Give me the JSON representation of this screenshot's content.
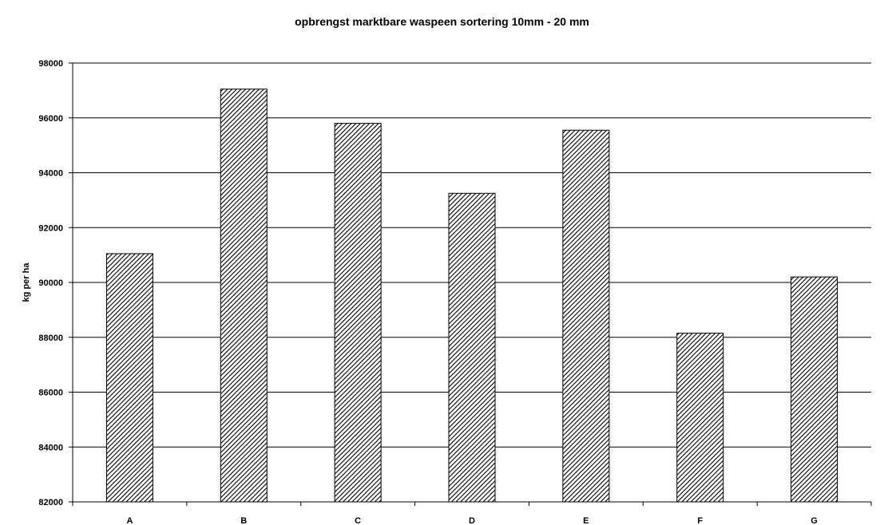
{
  "chart_data": {
    "type": "bar",
    "title": "opbrengst marktbare waspeen sortering 10mm - 20 mm",
    "xlabel": "",
    "ylabel": "kg per ha",
    "categories": [
      "A",
      "B",
      "C",
      "D",
      "E",
      "F",
      "G"
    ],
    "values": [
      91050,
      97050,
      95800,
      93250,
      95550,
      88150,
      90200
    ],
    "ylim": [
      82000,
      98000
    ],
    "yticks": [
      82000,
      84000,
      86000,
      88000,
      90000,
      92000,
      94000,
      96000,
      98000
    ],
    "grid": true,
    "legend": "none",
    "bar_pattern": "diagonal-hatch",
    "colors": {
      "bar_stroke": "#000000",
      "hatch": "#000000",
      "grid": "#000000"
    }
  }
}
